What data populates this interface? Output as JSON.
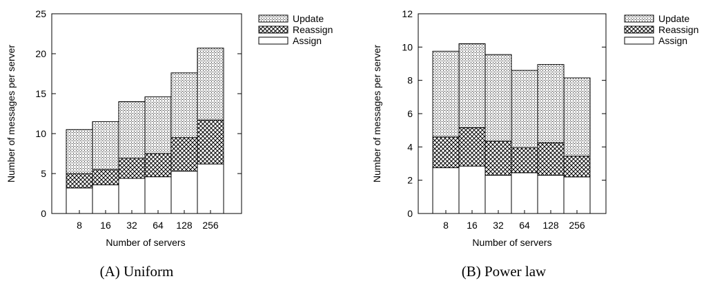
{
  "chart_data": [
    {
      "type": "bar",
      "stacked": true,
      "caption": "(A) Uniform",
      "xlabel": "Number of servers",
      "ylabel": "Number of messages per server",
      "categories": [
        "8",
        "16",
        "32",
        "64",
        "128",
        "256"
      ],
      "ylim": [
        0,
        25
      ],
      "yticks": [
        0,
        5,
        10,
        15,
        20,
        25
      ],
      "legend_position": "top-right (outside)",
      "series": [
        {
          "name": "Assign",
          "values": [
            3.2,
            3.6,
            4.4,
            4.6,
            5.3,
            6.2
          ]
        },
        {
          "name": "Reassign",
          "values": [
            1.8,
            1.9,
            2.5,
            2.9,
            4.2,
            5.5
          ]
        },
        {
          "name": "Update",
          "values": [
            5.5,
            6.0,
            7.1,
            7.1,
            8.1,
            9.0
          ]
        }
      ]
    },
    {
      "type": "bar",
      "stacked": true,
      "caption": "(B) Power law",
      "xlabel": "Number of servers",
      "ylabel": "Number of messages per server",
      "categories": [
        "8",
        "16",
        "32",
        "64",
        "128",
        "256"
      ],
      "ylim": [
        0,
        12
      ],
      "yticks": [
        0,
        2,
        4,
        6,
        8,
        10,
        12
      ],
      "legend_position": "top-right (outside)",
      "series": [
        {
          "name": "Assign",
          "values": [
            2.75,
            2.85,
            2.3,
            2.45,
            2.3,
            2.2
          ]
        },
        {
          "name": "Reassign",
          "values": [
            1.85,
            2.3,
            2.05,
            1.5,
            1.95,
            1.25
          ]
        },
        {
          "name": "Update",
          "values": [
            5.15,
            5.05,
            5.2,
            4.65,
            4.7,
            4.7
          ]
        }
      ]
    }
  ]
}
